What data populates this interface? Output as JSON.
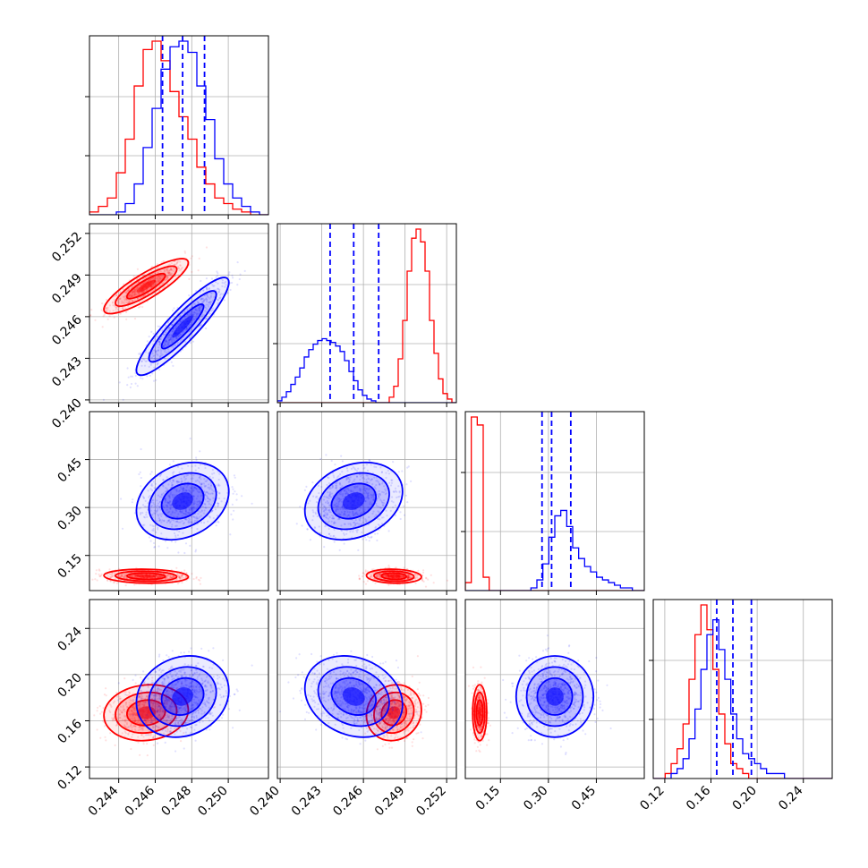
{
  "chart_data": {
    "type": "corner",
    "parameters": [
      "",
      "",
      "",
      ""
    ],
    "grid": true,
    "quantile_line_color": "#0000ff",
    "series": [
      {
        "color": "#ff0000",
        "means": [
          0.2455,
          0.2482,
          0.085,
          0.167
        ],
        "sds": [
          0.00105,
          0.0009,
          0.01,
          0.011
        ],
        "corr01": 0.85
      },
      {
        "color": "#0000ff",
        "means": [
          0.2475,
          0.2453,
          0.32,
          0.181
        ],
        "sds": [
          0.00115,
          0.0016,
          0.055,
          0.016
        ],
        "corr01": 0.9
      }
    ],
    "ticks": [
      [
        "0.244",
        "0.246",
        "0.248",
        "0.250"
      ],
      [
        "0.240",
        "0.243",
        "0.246",
        "0.249",
        "0.252"
      ],
      [
        "0.15",
        "0.30",
        "0.45"
      ],
      [
        "0.12",
        "0.16",
        "0.20",
        "0.24"
      ]
    ],
    "tick_values": [
      [
        0.244,
        0.246,
        0.248,
        0.25
      ],
      [
        0.24,
        0.243,
        0.246,
        0.249,
        0.252
      ],
      [
        0.15,
        0.3,
        0.45
      ],
      [
        0.12,
        0.16,
        0.2,
        0.24
      ]
    ],
    "ranges": [
      [
        0.2424,
        0.2522
      ],
      [
        0.2398,
        0.2527
      ],
      [
        0.04,
        0.6
      ],
      [
        0.11,
        0.265
      ]
    ],
    "quantiles": [
      [
        0.2464,
        0.2475,
        0.2487
      ],
      [
        0.2436,
        0.2453,
        0.2471
      ],
      [
        0.28,
        0.31,
        0.37
      ],
      [
        0.165,
        0.179,
        0.195
      ]
    ],
    "histograms": [
      {
        "red": [
          1,
          3,
          6,
          15,
          27,
          46,
          59,
          62,
          55,
          44,
          35,
          27,
          17,
          11,
          6,
          4,
          2,
          1,
          0,
          0
        ],
        "blue": [
          0,
          0,
          0,
          1,
          4,
          11,
          24,
          38,
          52,
          60,
          62,
          58,
          46,
          34,
          20,
          11,
          6,
          3,
          1,
          0
        ]
      },
      {
        "red": [
          0,
          0,
          0,
          0,
          0,
          0,
          0,
          0,
          0,
          0,
          0,
          0,
          0,
          0,
          0,
          0,
          0,
          0,
          0,
          0,
          0,
          0,
          0,
          0,
          0,
          3,
          9,
          24,
          45,
          72,
          90,
          95,
          88,
          72,
          45,
          27,
          13,
          5,
          2,
          0
        ],
        "blue": [
          1,
          3,
          6,
          10,
          14,
          19,
          25,
          29,
          32,
          34,
          35,
          34,
          33,
          31,
          28,
          23,
          17,
          12,
          7,
          4,
          2,
          1,
          0,
          0,
          0,
          0,
          0,
          0,
          0,
          0,
          0,
          0,
          0,
          0,
          0,
          0,
          0,
          0,
          0,
          0
        ]
      },
      {
        "red": [
          3,
          65,
          62,
          5,
          0,
          0,
          0,
          0,
          0,
          0,
          0,
          0,
          0,
          0,
          0,
          0,
          0,
          0,
          0,
          0,
          0,
          0,
          0,
          0,
          0,
          0,
          0,
          0,
          0,
          0
        ],
        "blue": [
          0,
          0,
          0,
          0,
          0,
          0,
          0,
          0,
          0,
          0,
          0,
          1,
          4,
          10,
          20,
          28,
          30,
          24,
          16,
          12,
          9,
          7,
          5,
          4,
          3,
          2,
          1,
          1,
          0,
          0
        ]
      },
      {
        "red": [
          0,
          0,
          1,
          3,
          6,
          11,
          20,
          29,
          35,
          30,
          22,
          13,
          7,
          3,
          2,
          1,
          0,
          0,
          0,
          0,
          0,
          0,
          0,
          0,
          0,
          0,
          0,
          0,
          0,
          0
        ],
        "blue": [
          0,
          0,
          0,
          1,
          2,
          4,
          8,
          14,
          22,
          29,
          32,
          26,
          20,
          13,
          8,
          5,
          4,
          3,
          2,
          1,
          1,
          1,
          0,
          0,
          0,
          0,
          0,
          0,
          0,
          0
        ]
      }
    ]
  }
}
